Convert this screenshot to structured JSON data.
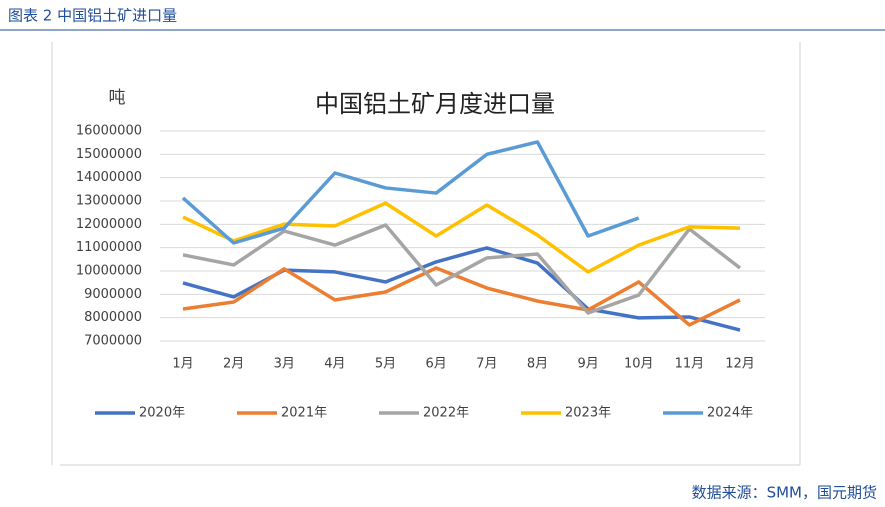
{
  "caption": "图表 2 中国铝土矿进口量",
  "source": "数据来源：SMM，国元期货",
  "chart_data": {
    "type": "line",
    "title": "中国铝土矿月度进口量",
    "y_label": "吨",
    "categories": [
      "1月",
      "2月",
      "3月",
      "4月",
      "5月",
      "6月",
      "7月",
      "8月",
      "9月",
      "10月",
      "11月",
      "12月"
    ],
    "series": [
      {
        "name": "2020年",
        "color": "#4472c4",
        "values": [
          9490000,
          8890000,
          10040000,
          9960000,
          9530000,
          10390000,
          10990000,
          10340000,
          8370000,
          7990000,
          8030000,
          7470000
        ]
      },
      {
        "name": "2021年",
        "color": "#ed7d31",
        "values": [
          8370000,
          8670000,
          10090000,
          8760000,
          9100000,
          10130000,
          9270000,
          8710000,
          8330000,
          9530000,
          7690000,
          8760000
        ]
      },
      {
        "name": "2022年",
        "color": "#a5a5a5",
        "values": [
          10690000,
          10260000,
          11710000,
          11110000,
          11970000,
          9400000,
          10560000,
          10730000,
          8200000,
          8970000,
          11800000,
          10130000
        ]
      },
      {
        "name": "2023年",
        "color": "#ffc000",
        "values": [
          12310000,
          11290000,
          12010000,
          11930000,
          12910000,
          11500000,
          12830000,
          11540000,
          9960000,
          11110000,
          11890000,
          11840000
        ]
      },
      {
        "name": "2024年",
        "color": "#5b9bd5",
        "values": [
          13130000,
          11200000,
          11840000,
          14200000,
          13560000,
          13340000,
          15000000,
          15530000,
          11500000,
          12270000,
          null,
          null
        ]
      }
    ],
    "ylim": [
      7000000,
      16000000
    ],
    "yticks": [
      7000000,
      8000000,
      9000000,
      10000000,
      11000000,
      12000000,
      13000000,
      14000000,
      15000000,
      16000000
    ],
    "grid": true,
    "legend": "bottom"
  }
}
